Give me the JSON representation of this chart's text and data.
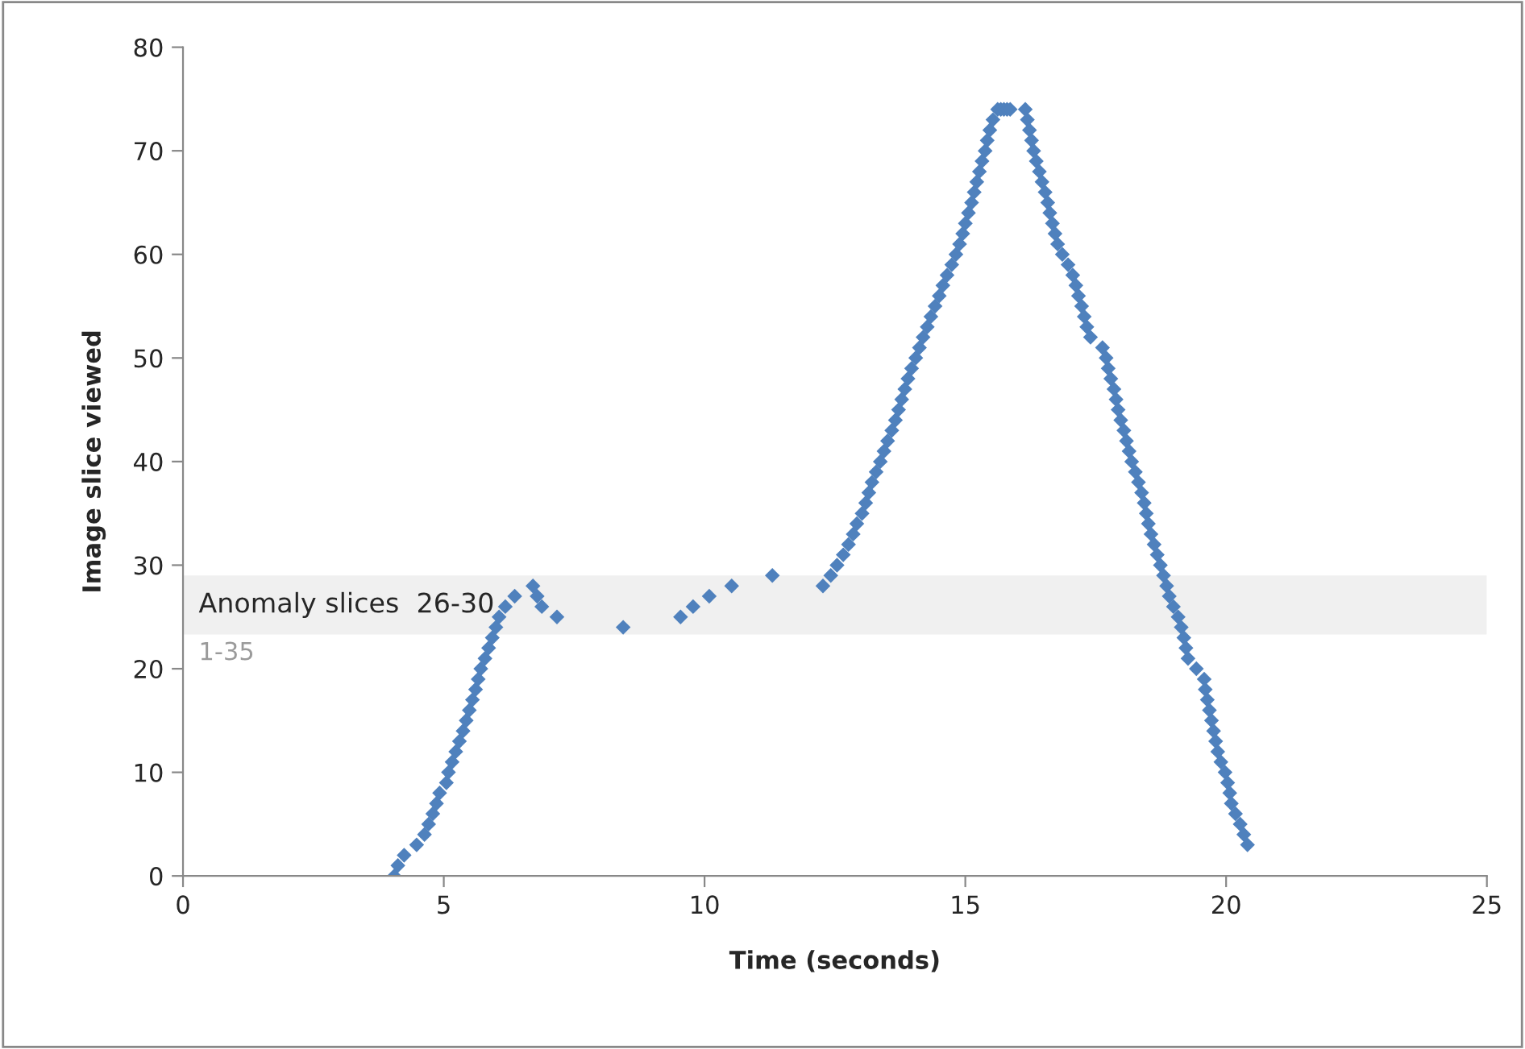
{
  "chart_data": {
    "type": "scatter",
    "xlabel": "Time (seconds)",
    "ylabel": "Image slice viewed",
    "xlim": [
      0,
      25
    ],
    "xticks": [
      0,
      5,
      10,
      15,
      20,
      25
    ],
    "ylim": [
      0,
      80
    ],
    "yticks": [
      0,
      10,
      20,
      30,
      40,
      50,
      60,
      70,
      80
    ],
    "grid": false,
    "legend": false,
    "marker": "diamond",
    "bands": [
      {
        "axis": "y",
        "from": 23.3,
        "to": 29,
        "label": "Anomaly slices  26-30",
        "color": "#f0f0f0"
      }
    ],
    "annotations": [
      "1-35"
    ],
    "series": [
      {
        "color": "#4f81bd",
        "x": [
          4.05,
          4.12,
          4.24,
          4.48,
          4.63,
          4.71,
          4.79,
          4.86,
          4.92,
          5.05,
          5.09,
          5.16,
          5.23,
          5.3,
          5.37,
          5.43,
          5.49,
          5.55,
          5.61,
          5.66,
          5.71,
          5.79,
          5.86,
          5.93,
          6.0,
          6.06,
          6.18,
          6.36,
          6.71,
          6.79,
          6.88,
          7.17,
          8.44,
          9.54,
          9.78,
          10.09,
          10.52,
          11.3,
          12.27,
          12.42,
          12.54,
          12.66,
          12.76,
          12.85,
          12.92,
          13.02,
          13.09,
          13.15,
          13.21,
          13.29,
          13.37,
          13.44,
          13.51,
          13.59,
          13.66,
          13.72,
          13.78,
          13.84,
          13.9,
          13.97,
          14.05,
          14.12,
          14.19,
          14.27,
          14.34,
          14.42,
          14.5,
          14.57,
          14.65,
          14.74,
          14.82,
          14.89,
          14.95,
          15.0,
          15.06,
          15.12,
          15.17,
          15.22,
          15.27,
          15.32,
          15.38,
          15.42,
          15.47,
          15.53,
          15.62,
          15.68,
          15.74,
          15.8,
          15.86,
          16.15,
          16.19,
          16.23,
          16.27,
          16.31,
          16.36,
          16.42,
          16.47,
          16.53,
          16.58,
          16.62,
          16.67,
          16.72,
          16.77,
          16.86,
          16.97,
          17.06,
          17.12,
          17.17,
          17.23,
          17.28,
          17.33,
          17.4,
          17.63,
          17.7,
          17.74,
          17.79,
          17.85,
          17.89,
          17.93,
          17.98,
          18.04,
          18.09,
          18.14,
          18.19,
          18.26,
          18.32,
          18.38,
          18.43,
          18.47,
          18.51,
          18.56,
          18.62,
          18.68,
          18.74,
          18.8,
          18.86,
          18.91,
          18.99,
          19.08,
          19.14,
          19.19,
          19.23,
          19.27,
          19.43,
          19.58,
          19.6,
          19.64,
          19.68,
          19.72,
          19.76,
          19.8,
          19.84,
          19.9,
          19.98,
          20.03,
          20.07,
          20.1,
          20.18,
          20.27,
          20.34,
          20.41
        ],
        "values": [
          0,
          1,
          2,
          3,
          4,
          5,
          6,
          7,
          8,
          9,
          10,
          11,
          12,
          13,
          14,
          15,
          16,
          17,
          18,
          19,
          20,
          21,
          22,
          23,
          24,
          25,
          26,
          27,
          28,
          27,
          26,
          25,
          24,
          25,
          26,
          27,
          28,
          29,
          28,
          29,
          30,
          31,
          32,
          33,
          34,
          35,
          36,
          37,
          38,
          39,
          40,
          41,
          42,
          43,
          44,
          45,
          46,
          47,
          48,
          49,
          50,
          51,
          52,
          53,
          54,
          55,
          56,
          57,
          58,
          59,
          60,
          61,
          62,
          63,
          64,
          65,
          66,
          67,
          68,
          69,
          70,
          71,
          72,
          73,
          74,
          74,
          74,
          74,
          74,
          74,
          73,
          72,
          71,
          70,
          69,
          68,
          67,
          66,
          65,
          64,
          63,
          62,
          61,
          60,
          59,
          58,
          57,
          56,
          55,
          54,
          53,
          52,
          51,
          50,
          49,
          48,
          47,
          46,
          45,
          44,
          43,
          42,
          41,
          40,
          39,
          38,
          37,
          36,
          35,
          34,
          33,
          32,
          31,
          30,
          29,
          28,
          27,
          26,
          25,
          24,
          23,
          22,
          21,
          20,
          19,
          18,
          17,
          16,
          15,
          14,
          13,
          12,
          11,
          10,
          9,
          8,
          7,
          6,
          5,
          4,
          3
        ]
      }
    ]
  }
}
